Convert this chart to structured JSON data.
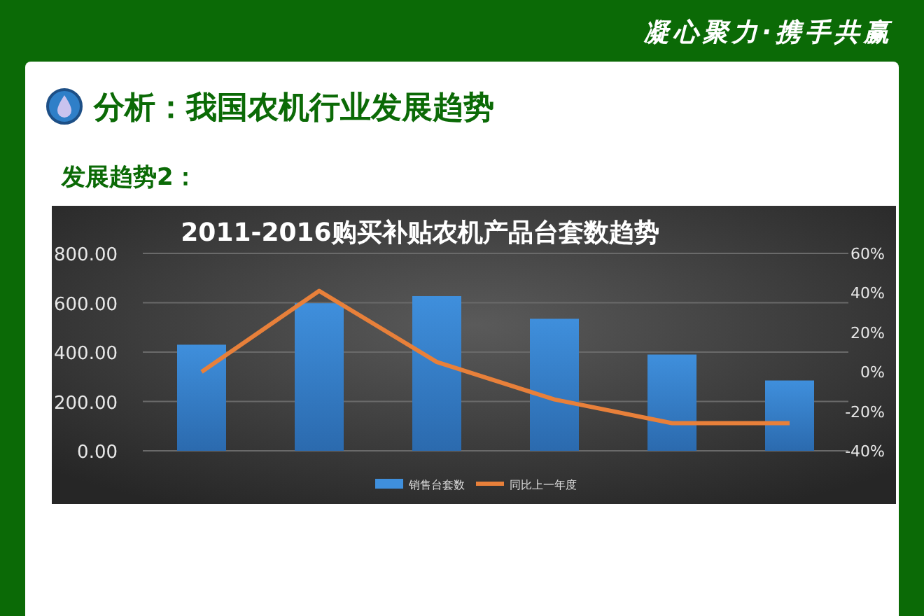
{
  "chart_data": {
    "type": "bar",
    "title": "2011-2016购买补贴农机产品台套数趋势",
    "annotations": [
      "凝心聚力·携手共赢",
      "分析：我国农机行业发展趋势",
      "发展趋势2："
    ],
    "categories": [
      null,
      null,
      null,
      null,
      null,
      null
    ],
    "series": [
      {
        "name": "销售台套数",
        "color": "#3f8fdc",
        "values": [
          430,
          598,
          627,
          535,
          390,
          285
        ]
      },
      {
        "name": "同比上一年度",
        "type": "line",
        "axis": "y2",
        "color": "#e8803a",
        "marker": "none",
        "values": [
          0,
          41,
          5,
          -14,
          -26,
          -26
        ]
      }
    ],
    "ylim": [
      0,
      800
    ],
    "yticks": [
      {
        "value": 0,
        "label": "0.00"
      },
      {
        "value": 200,
        "label": "200.00"
      },
      {
        "value": 400,
        "label": "400.00"
      },
      {
        "value": 600,
        "label": "600.00"
      },
      {
        "value": 800,
        "label": "800.00"
      }
    ],
    "y2lim": [
      -40,
      60
    ],
    "y2ticks": [
      {
        "value": -40,
        "label": "-40%"
      },
      {
        "value": -20,
        "label": "-20%"
      },
      {
        "value": 0,
        "label": "0%"
      },
      {
        "value": 20,
        "label": "20%"
      },
      {
        "value": 40,
        "label": "40%"
      },
      {
        "value": 60,
        "label": "60%"
      }
    ],
    "grid": "y",
    "legend": "bottom"
  }
}
